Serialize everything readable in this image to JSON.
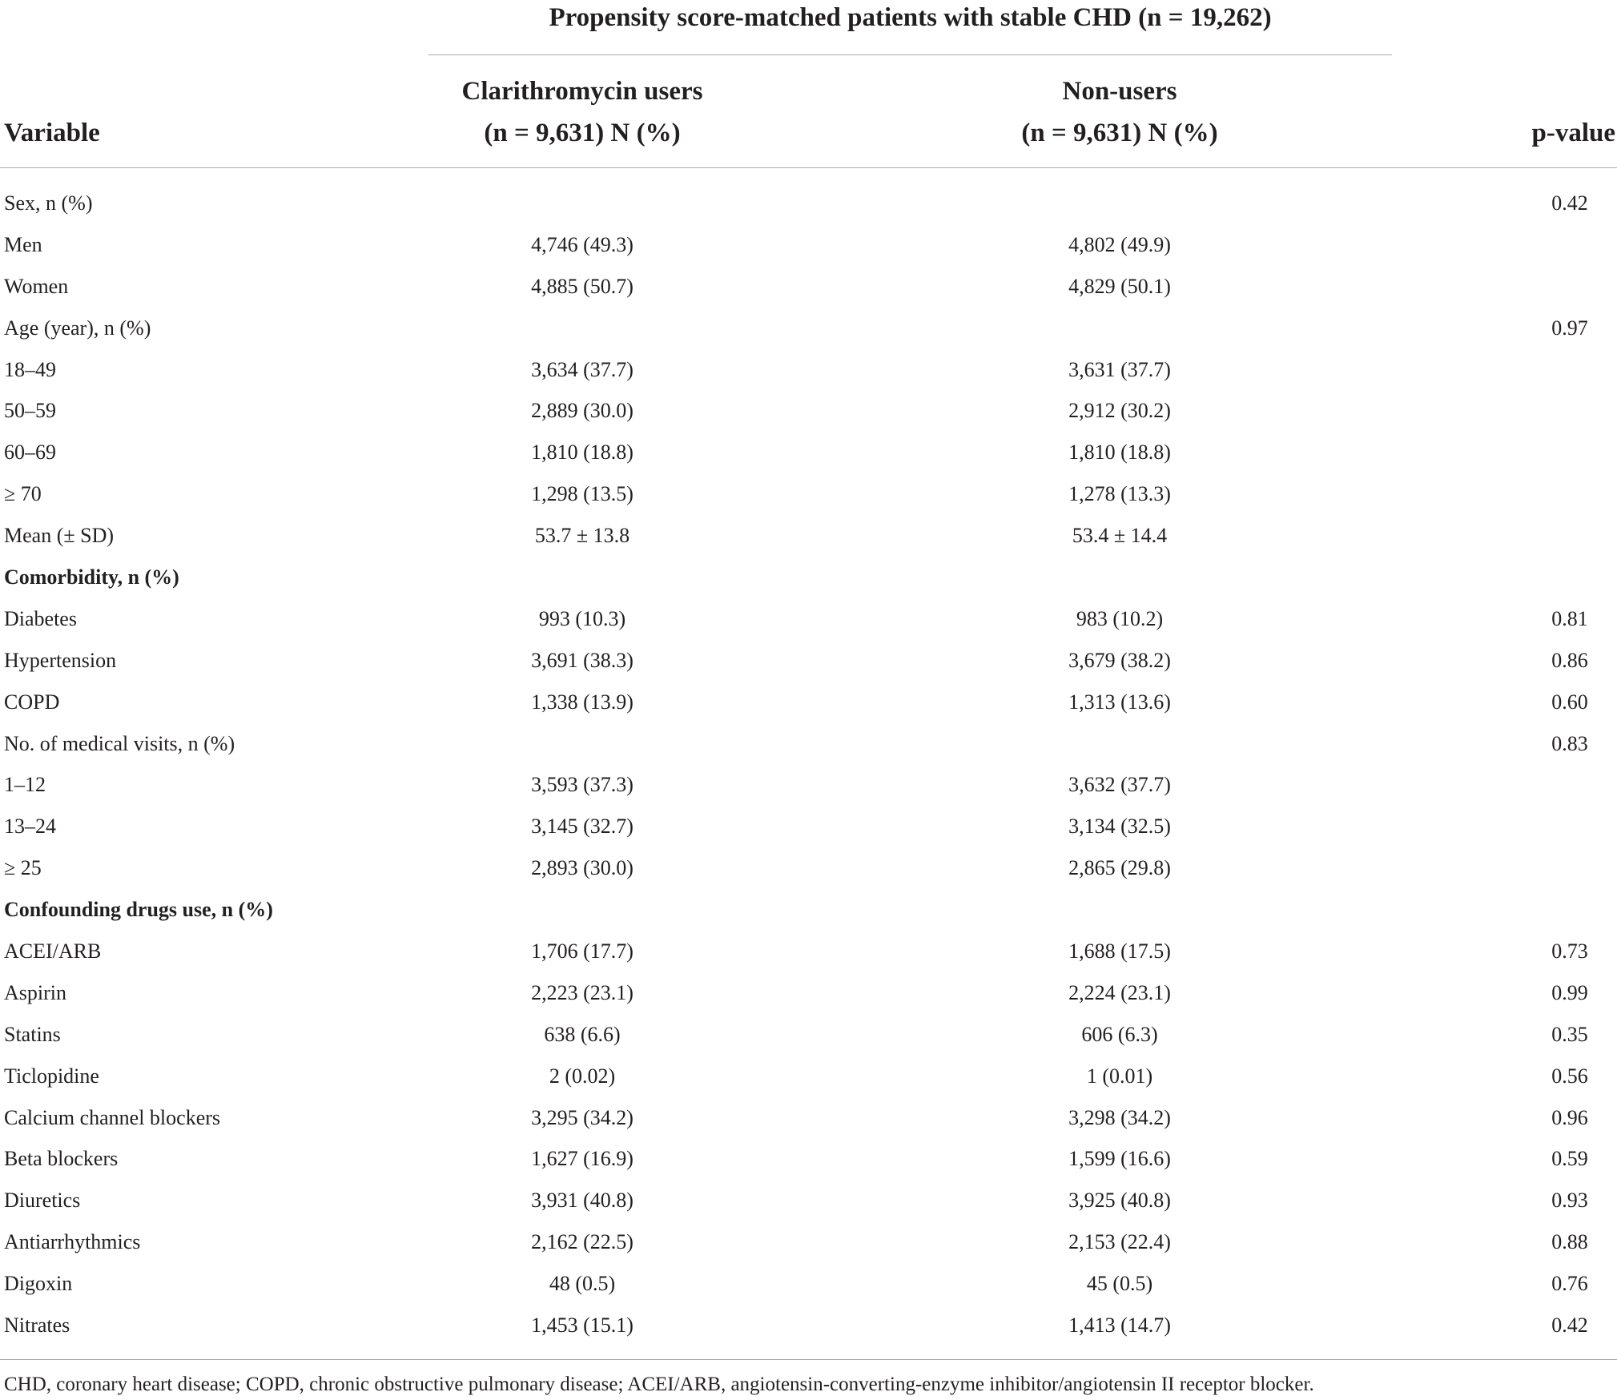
{
  "header": {
    "span_title": "Propensity score-matched patients with stable CHD (n = 19,262)",
    "variable": "Variable",
    "users_line1": "Clarithromycin users",
    "users_line2": "(n = 9,631) N (%)",
    "nonusers_line1": "Non-users",
    "nonusers_line2": "(n = 9,631) N (%)",
    "pvalue": "p-value"
  },
  "rows": [
    {
      "variable": "Sex, n (%)",
      "users": "",
      "nonusers": "",
      "p": "0.42",
      "section": false
    },
    {
      "variable": "Men",
      "users": "4,746 (49.3)",
      "nonusers": "4,802 (49.9)",
      "p": "",
      "section": false
    },
    {
      "variable": "Women",
      "users": "4,885 (50.7)",
      "nonusers": "4,829 (50.1)",
      "p": "",
      "section": false
    },
    {
      "variable": "Age (year), n (%)",
      "users": "",
      "nonusers": "",
      "p": "0.97",
      "section": false
    },
    {
      "variable": "18–49",
      "users": "3,634 (37.7)",
      "nonusers": "3,631 (37.7)",
      "p": "",
      "section": false
    },
    {
      "variable": "50–59",
      "users": "2,889 (30.0)",
      "nonusers": "2,912 (30.2)",
      "p": "",
      "section": false
    },
    {
      "variable": "60–69",
      "users": "1,810 (18.8)",
      "nonusers": "1,810 (18.8)",
      "p": "",
      "section": false
    },
    {
      "variable": "≥ 70",
      "users": "1,298 (13.5)",
      "nonusers": "1,278 (13.3)",
      "p": "",
      "section": false
    },
    {
      "variable": "Mean (± SD)",
      "users": "53.7 ± 13.8",
      "nonusers": "53.4 ± 14.4",
      "p": "",
      "section": false
    },
    {
      "variable": "Comorbidity, n (%)",
      "users": "",
      "nonusers": "",
      "p": "",
      "section": true
    },
    {
      "variable": "Diabetes",
      "users": "993 (10.3)",
      "nonusers": "983 (10.2)",
      "p": "0.81",
      "section": false
    },
    {
      "variable": "Hypertension",
      "users": "3,691 (38.3)",
      "nonusers": "3,679 (38.2)",
      "p": "0.86",
      "section": false
    },
    {
      "variable": "COPD",
      "users": "1,338 (13.9)",
      "nonusers": "1,313 (13.6)",
      "p": "0.60",
      "section": false
    },
    {
      "variable": "No. of medical visits, n (%)",
      "users": "",
      "nonusers": "",
      "p": "0.83",
      "section": false
    },
    {
      "variable": "1–12",
      "users": "3,593 (37.3)",
      "nonusers": "3,632 (37.7)",
      "p": "",
      "section": false
    },
    {
      "variable": "13–24",
      "users": "3,145 (32.7)",
      "nonusers": "3,134 (32.5)",
      "p": "",
      "section": false
    },
    {
      "variable": "≥ 25",
      "users": "2,893 (30.0)",
      "nonusers": "2,865 (29.8)",
      "p": "",
      "section": false
    },
    {
      "variable": "Confounding drugs use, n (%)",
      "users": "",
      "nonusers": "",
      "p": "",
      "section": true
    },
    {
      "variable": "ACEI/ARB",
      "users": "1,706 (17.7)",
      "nonusers": "1,688 (17.5)",
      "p": "0.73",
      "section": false
    },
    {
      "variable": "Aspirin",
      "users": "2,223 (23.1)",
      "nonusers": "2,224 (23.1)",
      "p": "0.99",
      "section": false
    },
    {
      "variable": "Statins",
      "users": "638 (6.6)",
      "nonusers": "606 (6.3)",
      "p": "0.35",
      "section": false
    },
    {
      "variable": "Ticlopidine",
      "users": "2 (0.02)",
      "nonusers": "1 (0.01)",
      "p": "0.56",
      "section": false
    },
    {
      "variable": "Calcium channel blockers",
      "users": "3,295 (34.2)",
      "nonusers": "3,298 (34.2)",
      "p": "0.96",
      "section": false
    },
    {
      "variable": "Beta blockers",
      "users": "1,627 (16.9)",
      "nonusers": "1,599 (16.6)",
      "p": "0.59",
      "section": false
    },
    {
      "variable": "Diuretics",
      "users": "3,931 (40.8)",
      "nonusers": "3,925 (40.8)",
      "p": "0.93",
      "section": false
    },
    {
      "variable": "Antiarrhythmics",
      "users": "2,162 (22.5)",
      "nonusers": "2,153 (22.4)",
      "p": "0.88",
      "section": false
    },
    {
      "variable": "Digoxin",
      "users": "48 (0.5)",
      "nonusers": "45 (0.5)",
      "p": "0.76",
      "section": false
    },
    {
      "variable": "Nitrates",
      "users": "1,453 (15.1)",
      "nonusers": "1,413 (14.7)",
      "p": "0.42",
      "section": false
    }
  ],
  "footnote": "CHD, coronary heart disease; COPD, chronic obstructive pulmonary disease; ACEI/ARB, angiotensin-converting-enzyme inhibitor/angiotensin II receptor blocker."
}
